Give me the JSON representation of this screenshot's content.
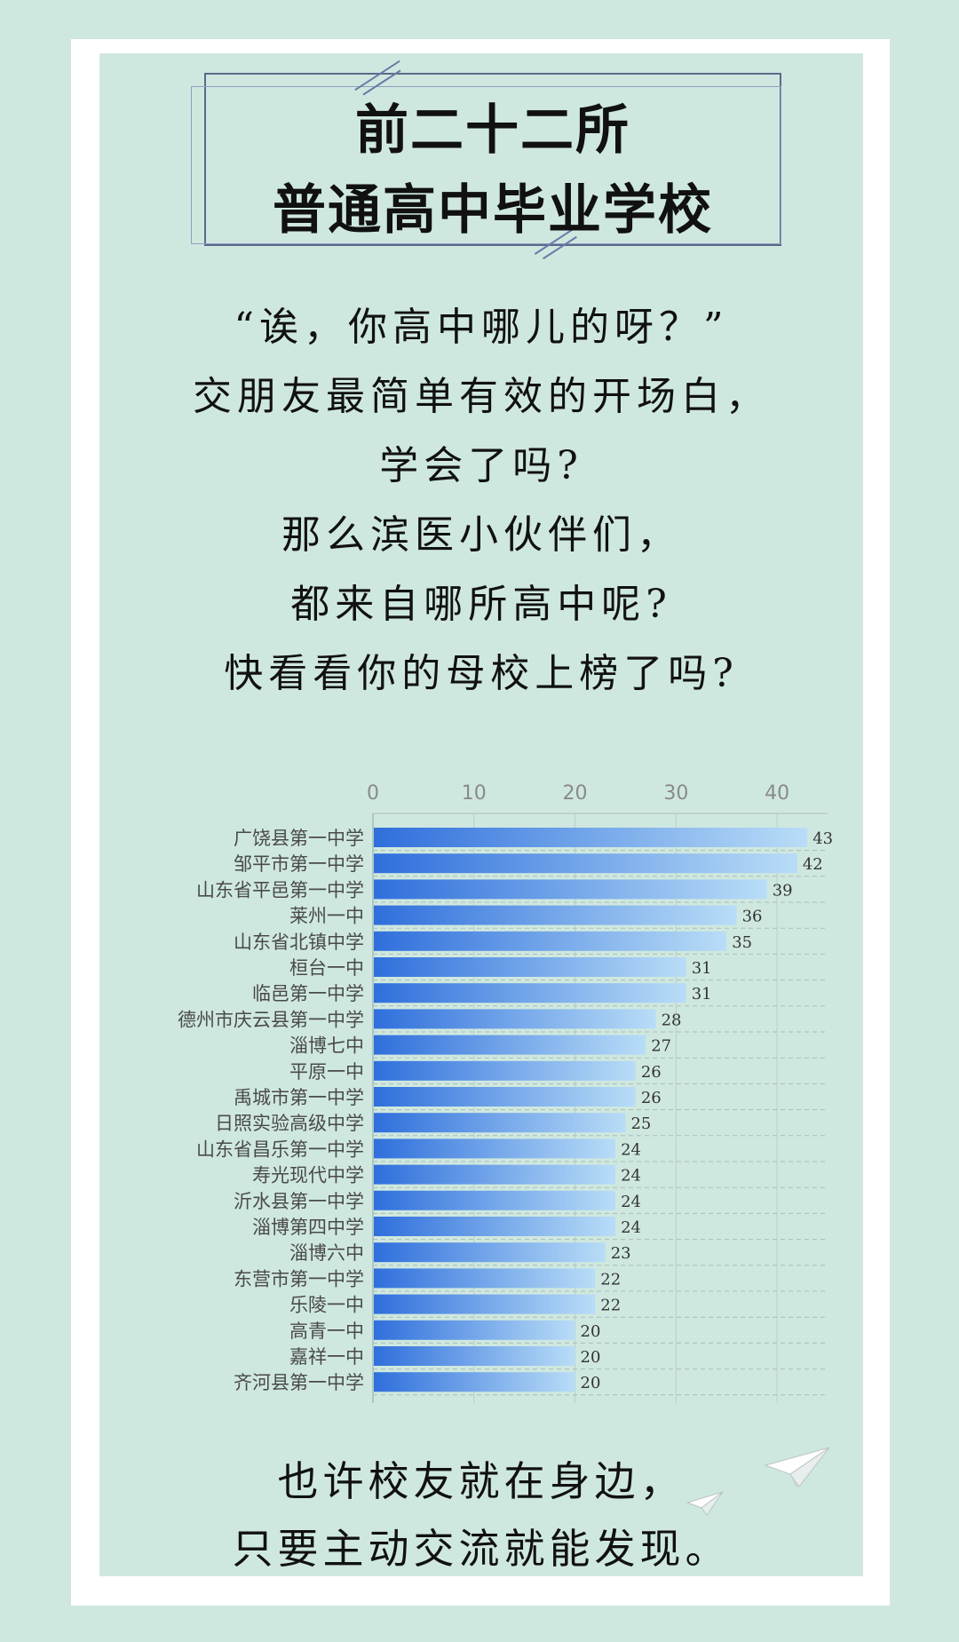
{
  "header": {
    "title_line1": "前二十二所",
    "title_line2": "普通高中毕业学校"
  },
  "intro": {
    "lines": [
      "“诶，你高中哪儿的呀？”",
      "交朋友最简单有效的开场白，",
      "学会了吗?",
      "那么滨医小伙伴们，",
      "都来自哪所高中呢?",
      "快看看你的母校上榜了吗?"
    ]
  },
  "chart_data": {
    "type": "bar",
    "orientation": "horizontal",
    "categories": [
      "广饶县第一中学",
      "邹平市第一中学",
      "山东省平邑第一中学",
      "莱州一中",
      "山东省北镇中学",
      "桓台一中",
      "临邑第一中学",
      "德州市庆云县第一中学",
      "淄博七中",
      "平原一中",
      "禹城市第一中学",
      "日照实验高级中学",
      "山东省昌乐第一中学",
      "寿光现代中学",
      "沂水县第一中学",
      "淄博第四中学",
      "淄博六中",
      "东营市第一中学",
      "乐陵一中",
      "高青一中",
      "嘉祥一中",
      "齐河县第一中学"
    ],
    "values": [
      43,
      42,
      39,
      36,
      35,
      31,
      31,
      28,
      27,
      26,
      26,
      25,
      24,
      24,
      24,
      24,
      23,
      22,
      22,
      20,
      20,
      20
    ],
    "xticks": [
      "0",
      "10",
      "20",
      "30",
      "40"
    ],
    "xlim": [
      0,
      45
    ],
    "axis_position": "top",
    "grid": true,
    "colors": {
      "bar_start": "#2f6fdc",
      "bar_end": "#b9ddf7"
    }
  },
  "outro": {
    "lines": [
      "也许校友就在身边，",
      "只要主动交流就能发现。"
    ]
  },
  "decor": {
    "icon": "paper-plane-icon"
  }
}
